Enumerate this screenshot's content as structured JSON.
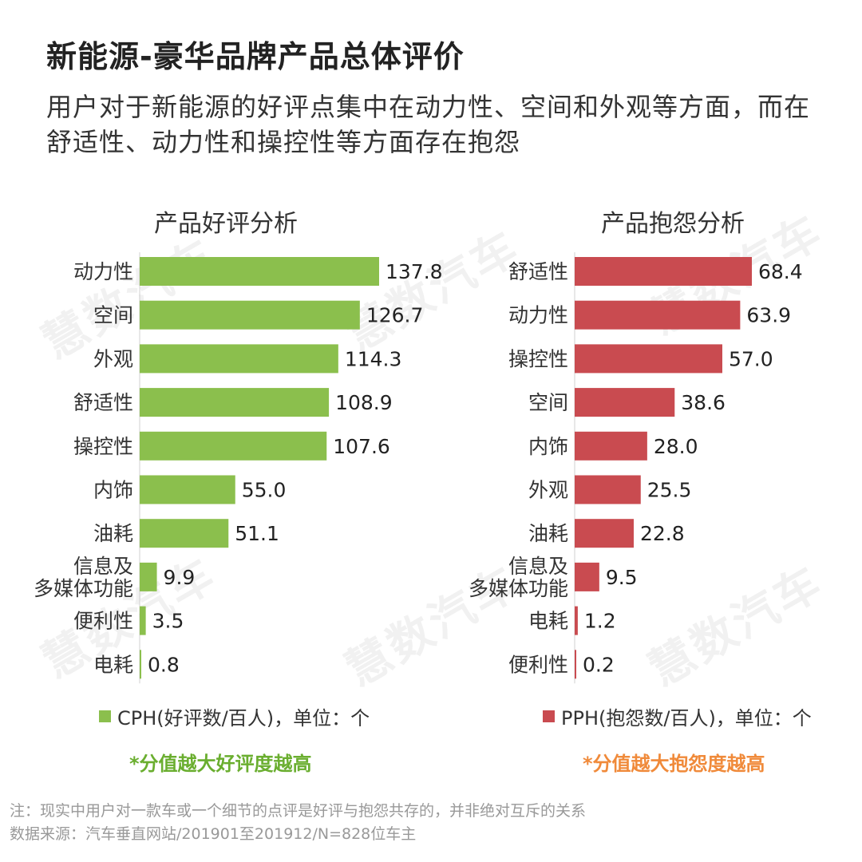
{
  "title": "新能源-豪华品牌产品总体评价",
  "subtitle": "用户对于新能源的好评点集中在动力性、空间和外观等方面，而在舒适性、动力性和操控性等方面存在抱怨",
  "watermark": "慧数汽车",
  "colors": {
    "positive": "#8BBF4D",
    "negative": "#C94B50",
    "positive_note": "#6AAE2F",
    "negative_note": "#F08A3A"
  },
  "chart_data": [
    {
      "type": "bar",
      "orientation": "horizontal",
      "title": "产品好评分析",
      "categories": [
        "动力性",
        "空间",
        "外观",
        "舒适性",
        "操控性",
        "内饰",
        "油耗",
        "信息及多媒体功能",
        "便利性",
        "电耗"
      ],
      "category_lines": [
        [
          "动力性"
        ],
        [
          "空间"
        ],
        [
          "外观"
        ],
        [
          "舒适性"
        ],
        [
          "操控性"
        ],
        [
          "内饰"
        ],
        [
          "油耗"
        ],
        [
          "信息及",
          "多媒体功能"
        ],
        [
          "便利性"
        ],
        [
          "电耗"
        ]
      ],
      "values": [
        137.8,
        126.7,
        114.3,
        108.9,
        107.6,
        55.0,
        51.1,
        9.9,
        3.5,
        0.8
      ],
      "value_labels": [
        "137.8",
        "126.7",
        "114.3",
        "108.9",
        "107.6",
        "55.0",
        "51.1",
        "9.9",
        "3.5",
        "0.8"
      ],
      "legend": "CPH(好评数/百人)，单位：个",
      "note": "*分值越大好评度越高",
      "color": "#8BBF4D"
    },
    {
      "type": "bar",
      "orientation": "horizontal",
      "title": "产品抱怨分析",
      "categories": [
        "舒适性",
        "动力性",
        "操控性",
        "空间",
        "内饰",
        "外观",
        "油耗",
        "信息及多媒体功能",
        "电耗",
        "便利性"
      ],
      "category_lines": [
        [
          "舒适性"
        ],
        [
          "动力性"
        ],
        [
          "操控性"
        ],
        [
          "空间"
        ],
        [
          "内饰"
        ],
        [
          "外观"
        ],
        [
          "油耗"
        ],
        [
          "信息及",
          "多媒体功能"
        ],
        [
          "电耗"
        ],
        [
          "便利性"
        ]
      ],
      "values": [
        68.4,
        63.9,
        57.0,
        38.6,
        28.0,
        25.5,
        22.8,
        9.5,
        1.2,
        0.2
      ],
      "value_labels": [
        "68.4",
        "63.9",
        "57.0",
        "38.6",
        "28.0",
        "25.5",
        "22.8",
        "9.5",
        "1.2",
        "0.2"
      ],
      "legend": "PPH(抱怨数/百人)，单位：个",
      "note": "*分值越大抱怨度越高",
      "color": "#C94B50"
    }
  ],
  "footnotes": {
    "note": "注：现实中用户对一款车或一个细节的点评是好评与抱怨共存的，并非绝对互斥的关系",
    "source": "数据来源：汽车垂直网站/201901至201912/N=828位车主"
  }
}
